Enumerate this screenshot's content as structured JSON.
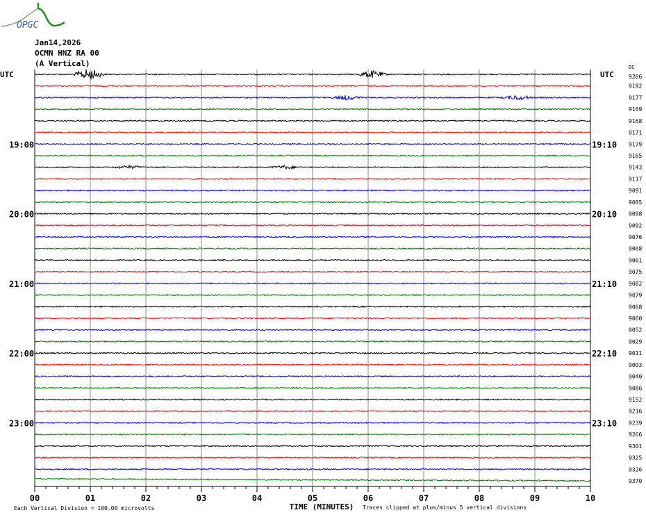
{
  "header": {
    "logo_text": "OPGC",
    "date": "Jan14,2026",
    "station": "OCMN HNZ RA 00",
    "component": "(A Vertical)"
  },
  "chart_data": {
    "type": "line",
    "title": "",
    "xlabel": "TIME (MINUTES)",
    "x_ticks": [
      "00",
      "01",
      "02",
      "03",
      "04",
      "05",
      "06",
      "07",
      "08",
      "09",
      "10"
    ],
    "xlim": [
      0,
      10
    ],
    "grid": true,
    "left_label_top": "UTC",
    "right_label_top": "UTC",
    "dc_header": "DC",
    "left_hour_labels": [
      {
        "trace": 6,
        "label": "19:00"
      },
      {
        "trace": 12,
        "label": "20:00"
      },
      {
        "trace": 18,
        "label": "21:00"
      },
      {
        "trace": 24,
        "label": "22:00"
      },
      {
        "trace": 30,
        "label": "23:00"
      }
    ],
    "right_hour_labels": [
      {
        "trace": 6,
        "label": "19:10"
      },
      {
        "trace": 12,
        "label": "20:10"
      },
      {
        "trace": 18,
        "label": "21:10"
      },
      {
        "trace": 24,
        "label": "22:10"
      },
      {
        "trace": 30,
        "label": "23:10"
      }
    ],
    "trace_colors": [
      "#000000",
      "#ff0000",
      "#0000ff",
      "#007700"
    ],
    "dc_offsets": [
      "9206",
      "9192",
      "9177",
      "9169",
      "9168",
      "9171",
      "9179",
      "9165",
      "9143",
      "9117",
      "9091",
      "9085",
      "9098",
      "9092",
      "9076",
      "9068",
      "9061",
      "9075",
      "9082",
      "9079",
      "9068",
      "9060",
      "9052",
      "9029",
      "9011",
      "9003",
      "9040",
      "9086",
      "9152",
      "9216",
      "9239",
      "9266",
      "9301",
      "9325",
      "9326",
      "9370"
    ],
    "footer_left": "Each Vertical Division =  100.00 microvolts",
    "footer_right": "Traces clipped at plus/minus 5 vertical divisions"
  }
}
